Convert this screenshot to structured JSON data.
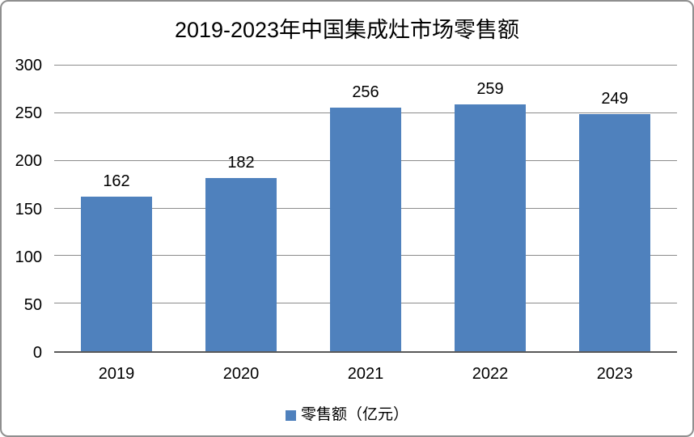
{
  "chart_data": {
    "type": "bar",
    "title": "2019-2023年中国集成灶市场零售额",
    "categories": [
      "2019",
      "2020",
      "2021",
      "2022",
      "2023"
    ],
    "series": [
      {
        "name": "零售额（亿元）",
        "values": [
          162,
          182,
          256,
          259,
          249
        ]
      }
    ],
    "ylim": [
      0,
      300
    ],
    "yticks": [
      0,
      50,
      100,
      150,
      200,
      250,
      300
    ],
    "grid": true,
    "legend_position": "bottom",
    "colors": {
      "bar": "#4F81BD",
      "gridline": "#8C8C8C",
      "axis": "#595959",
      "frame_border": "#8F8F8F",
      "text": "#000000"
    }
  }
}
